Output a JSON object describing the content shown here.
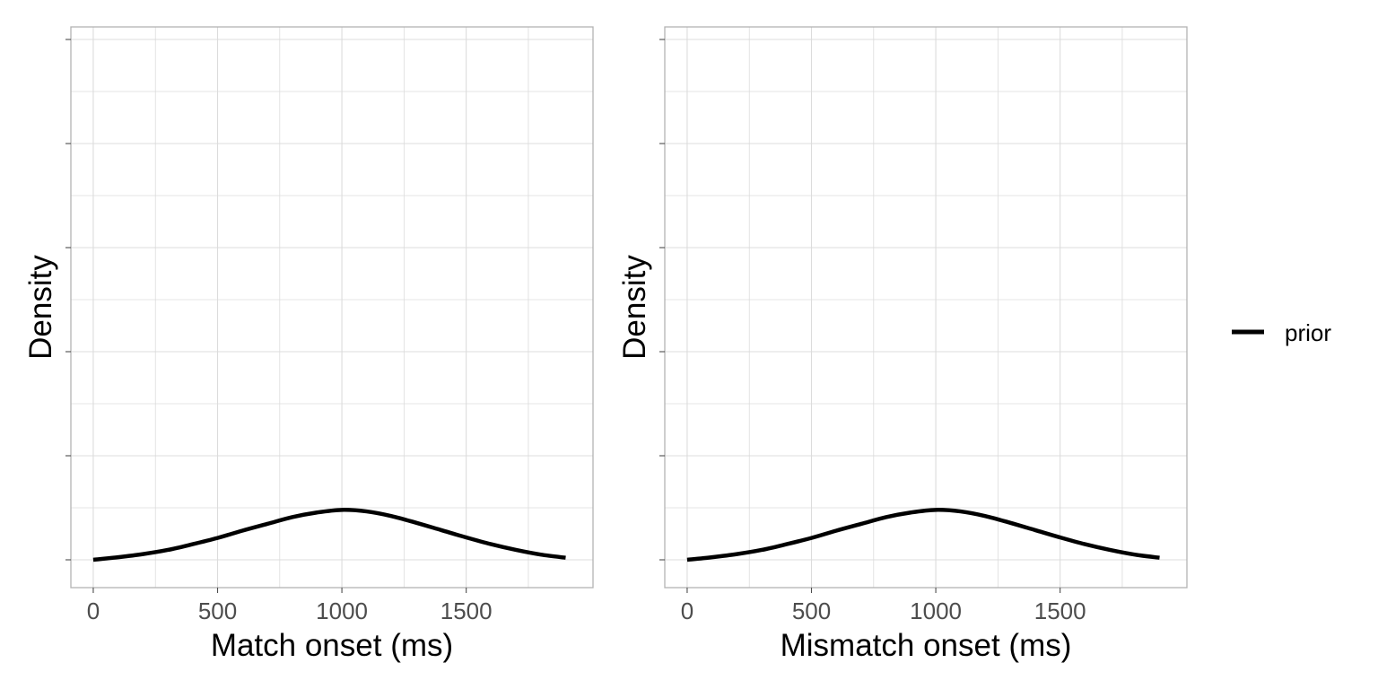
{
  "chart_data": [
    {
      "type": "line",
      "panel": "left",
      "xlabel": "Match onset (ms)",
      "ylabel": "Density",
      "xlim": [
        -90,
        2010
      ],
      "ylim": [
        0,
        1
      ],
      "x_ticks": [
        0,
        500,
        1000,
        1500
      ],
      "x_tick_labels": [
        "0",
        "500",
        "1000",
        "1500"
      ],
      "y_ticks": [
        0.0,
        0.2,
        0.4,
        0.6,
        0.8,
        1.0
      ],
      "grid": true,
      "series": [
        {
          "name": "prior",
          "color": "#000000",
          "x": [
            0,
            100,
            200,
            300,
            400,
            500,
            600,
            700,
            800,
            900,
            1000,
            1100,
            1200,
            1300,
            1400,
            1500,
            1600,
            1700,
            1800,
            1900
          ],
          "y": [
            0.0,
            0.005,
            0.011,
            0.019,
            0.03,
            0.042,
            0.056,
            0.069,
            0.082,
            0.091,
            0.096,
            0.093,
            0.084,
            0.071,
            0.057,
            0.043,
            0.03,
            0.019,
            0.01,
            0.004
          ]
        }
      ]
    },
    {
      "type": "line",
      "panel": "right",
      "xlabel": "Mismatch onset (ms)",
      "ylabel": "Density",
      "xlim": [
        -90,
        2010
      ],
      "ylim": [
        0,
        1
      ],
      "x_ticks": [
        0,
        500,
        1000,
        1500
      ],
      "x_tick_labels": [
        "0",
        "500",
        "1000",
        "1500"
      ],
      "y_ticks": [
        0.0,
        0.2,
        0.4,
        0.6,
        0.8,
        1.0
      ],
      "grid": true,
      "series": [
        {
          "name": "prior",
          "color": "#000000",
          "x": [
            0,
            100,
            200,
            300,
            400,
            500,
            600,
            700,
            800,
            900,
            1000,
            1100,
            1200,
            1300,
            1400,
            1500,
            1600,
            1700,
            1800,
            1900
          ],
          "y": [
            0.0,
            0.005,
            0.011,
            0.019,
            0.03,
            0.042,
            0.056,
            0.069,
            0.082,
            0.091,
            0.096,
            0.093,
            0.084,
            0.071,
            0.057,
            0.043,
            0.03,
            0.019,
            0.01,
            0.004
          ]
        }
      ]
    }
  ],
  "legend": {
    "position": "right",
    "items": [
      {
        "label": "prior",
        "color": "#000000"
      }
    ]
  },
  "colors": {
    "grid": "#dcdcdc",
    "panel_border": "#b3b3b3",
    "tick_mark": "#4d4d4d",
    "line": "#000000"
  }
}
